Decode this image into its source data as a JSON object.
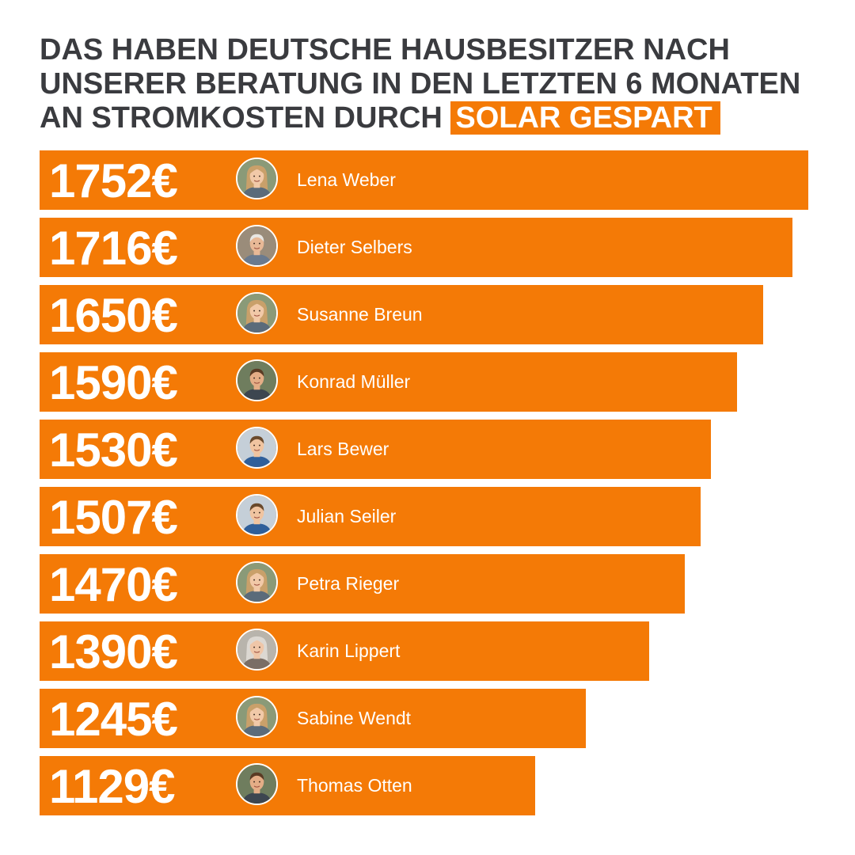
{
  "headline": {
    "line1": "DAS HABEN DEUTSCHE HAUSBESITZER NACH",
    "line2": "UNSERER BERATUNG IN DEN LETZTEN 6 MONATEN",
    "line3": "AN STROMKOSTEN DURCH",
    "highlight": "SOLAR GESPART"
  },
  "colors": {
    "bar": "#f47a06",
    "headline_text": "#3a3b3f",
    "label_text": "#ffffff"
  },
  "chart_data": {
    "type": "bar",
    "orientation": "horizontal",
    "title": "DAS HABEN DEUTSCHE HAUSBESITZER NACH UNSERER BERATUNG IN DEN LETZTEN 6 MONATEN AN STROMKOSTEN DURCH SOLAR GESPART",
    "unit": "€",
    "categories": [
      "Lena Weber",
      "Dieter Selbers",
      "Susanne Breun",
      "Konrad Müller",
      "Lars Bewer",
      "Julian Seiler",
      "Petra Rieger",
      "Karin Lippert",
      "Sabine Wendt",
      "Thomas Otten"
    ],
    "values": [
      1752,
      1716,
      1650,
      1590,
      1530,
      1507,
      1470,
      1390,
      1245,
      1129
    ],
    "value_labels": [
      "1752€",
      "1716€",
      "1650€",
      "1590€",
      "1530€",
      "1507€",
      "1470€",
      "1390€",
      "1245€",
      "1129€"
    ],
    "avatars": [
      "woman-avatar-icon",
      "older-man-avatar-icon",
      "woman-avatar-icon",
      "man-avatar-icon",
      "young-man-avatar-icon",
      "young-man-avatar-icon",
      "woman-avatar-icon",
      "older-woman-avatar-icon",
      "woman-avatar-icon",
      "man-avatar-icon"
    ],
    "grid": false,
    "legend": "none"
  }
}
